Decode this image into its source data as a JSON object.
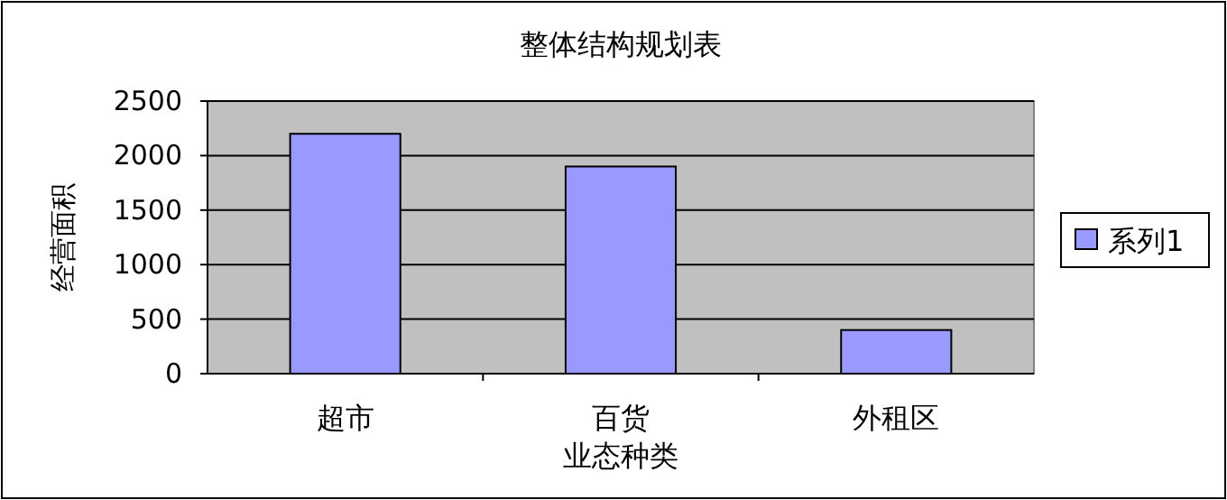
{
  "chart_data": {
    "type": "bar",
    "title": "整体结构规划表",
    "xlabel": "业态种类",
    "ylabel": "经营面积",
    "categories": [
      "超市",
      "百货",
      "外租区"
    ],
    "series": [
      {
        "name": "系列1",
        "color": "#9999ff",
        "values": [
          2200,
          1900,
          400
        ]
      }
    ],
    "ylim": [
      0,
      2500
    ],
    "yticks": [
      0,
      500,
      1000,
      1500,
      2000,
      2500
    ],
    "grid": "y",
    "legend": "right"
  }
}
